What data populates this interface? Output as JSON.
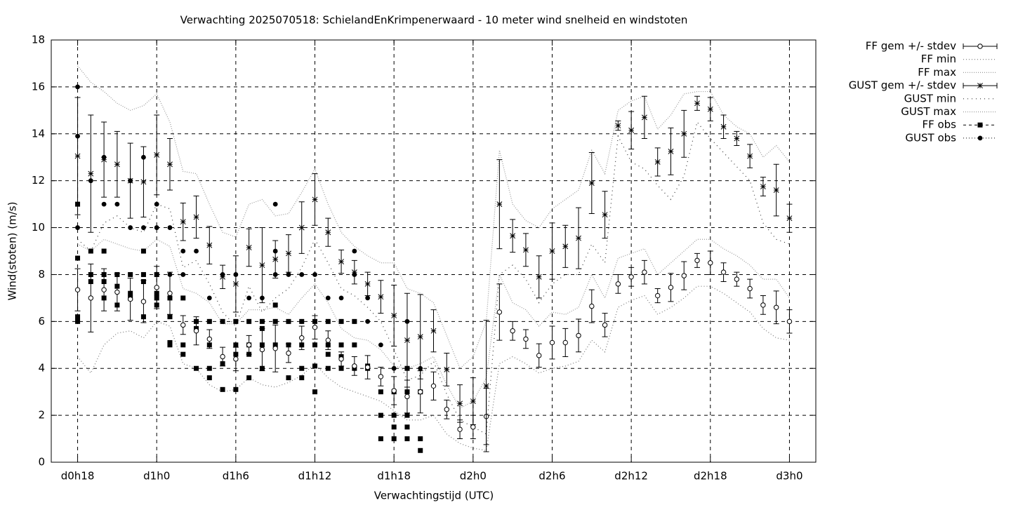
{
  "chart_data": {
    "type": "errorbar",
    "title": "Verwachting 2025070518: SchielandEnKrimpenerwaard - 10 meter wind snelheid en windstoten",
    "xlabel": "Verwachtingstijd (UTC)",
    "ylabel": "Wind(stoten) (m/s)",
    "xlim": [
      16,
      74
    ],
    "xticks": [
      {
        "value": 18,
        "label": "d0h18"
      },
      {
        "value": 24,
        "label": "d1h0"
      },
      {
        "value": 30,
        "label": "d1h6"
      },
      {
        "value": 36,
        "label": "d1h12"
      },
      {
        "value": 42,
        "label": "d1h18"
      },
      {
        "value": 48,
        "label": "d2h0"
      },
      {
        "value": 54,
        "label": "d2h6"
      },
      {
        "value": 60,
        "label": "d2h12"
      },
      {
        "value": 66,
        "label": "d2h18"
      },
      {
        "value": 72,
        "label": "d3h0"
      }
    ],
    "ylim": [
      0,
      18
    ],
    "yticks": [
      0,
      2,
      4,
      6,
      8,
      10,
      12,
      14,
      16,
      18
    ],
    "grid": true,
    "legend": "top-right",
    "x": [
      18,
      19,
      20,
      21,
      22,
      23,
      24,
      25,
      26,
      27,
      28,
      29,
      30,
      31,
      32,
      33,
      34,
      35,
      36,
      37,
      38,
      39,
      40,
      41,
      42,
      43,
      44,
      45,
      46,
      47,
      48,
      49,
      50,
      51,
      52,
      53,
      54,
      55,
      56,
      57,
      58,
      59,
      60,
      61,
      62,
      63,
      64,
      65,
      66,
      67,
      68,
      69,
      70,
      71,
      72
    ],
    "series": [
      {
        "name": "FF gem +/- stdev",
        "style": "errorbar",
        "marker": "circle",
        "color": "#000000",
        "values": [
          7.35,
          7.0,
          7.35,
          7.25,
          6.95,
          6.85,
          7.45,
          7.2,
          5.85,
          5.6,
          5.25,
          4.5,
          4.4,
          5.0,
          4.8,
          4.85,
          4.65,
          5.3,
          5.75,
          5.2,
          4.4,
          4.1,
          4.05,
          3.65,
          3.05,
          2.8,
          3.0,
          3.25,
          2.25,
          1.4,
          1.5,
          1.95,
          6.4,
          5.6,
          5.25,
          4.55,
          5.1,
          5.1,
          5.4,
          6.65,
          5.85,
          7.6,
          7.9,
          8.1,
          7.1,
          7.45,
          7.95,
          8.6,
          8.5,
          8.1,
          7.8,
          7.4,
          6.7,
          6.6,
          6.0
        ],
        "errors": [
          0.9,
          1.45,
          0.9,
          0.8,
          0.9,
          0.9,
          0.9,
          0.9,
          0.4,
          0.6,
          0.4,
          0.4,
          0.5,
          0.4,
          0.9,
          1.0,
          0.4,
          0.5,
          0.5,
          0.4,
          0.3,
          0.4,
          0.5,
          0.4,
          0.6,
          0.7,
          0.9,
          0.6,
          0.4,
          0.4,
          0.5,
          1.2,
          1.2,
          0.4,
          0.4,
          0.5,
          0.7,
          0.6,
          0.7,
          0.7,
          0.5,
          0.4,
          0.4,
          0.5,
          0.3,
          0.6,
          0.6,
          0.3,
          0.5,
          0.4,
          0.3,
          0.4,
          0.4,
          0.7,
          0.5
        ]
      },
      {
        "name": "FF min",
        "style": "line",
        "dash": "1 3",
        "color": "#777777",
        "values": [
          4.5,
          3.8,
          5.0,
          5.5,
          5.6,
          5.3,
          6.0,
          5.8,
          4.2,
          4.0,
          3.3,
          3.0,
          3.1,
          3.6,
          3.3,
          3.2,
          3.4,
          3.7,
          4.2,
          3.6,
          3.2,
          3.0,
          2.8,
          2.6,
          2.2,
          1.8,
          1.8,
          2.0,
          1.2,
          0.8,
          0.6,
          0.5,
          4.2,
          4.5,
          4.2,
          3.8,
          4.0,
          4.1,
          4.3,
          5.2,
          4.7,
          6.6,
          6.9,
          7.1,
          6.3,
          6.6,
          7.0,
          7.5,
          7.5,
          7.2,
          6.8,
          6.4,
          5.7,
          5.3,
          5.2
        ]
      },
      {
        "name": "FF max",
        "style": "line",
        "dash": "1 2",
        "color": "#999999",
        "values": [
          9.3,
          9.0,
          9.5,
          9.3,
          9.1,
          9.0,
          9.5,
          9.2,
          7.4,
          7.2,
          6.8,
          5.9,
          5.9,
          6.5,
          6.5,
          6.6,
          6.3,
          7.0,
          7.6,
          6.8,
          5.7,
          5.3,
          5.2,
          4.8,
          4.1,
          4.0,
          4.2,
          4.5,
          3.3,
          2.3,
          2.6,
          3.6,
          8.0,
          6.8,
          6.5,
          5.8,
          6.4,
          6.3,
          6.6,
          8.0,
          7.0,
          8.7,
          8.9,
          9.1,
          8.0,
          8.5,
          9.0,
          9.5,
          9.5,
          9.1,
          8.8,
          8.4,
          7.8,
          7.8,
          7.0
        ]
      },
      {
        "name": "GUST gem +/- stdev",
        "style": "errorbar",
        "marker": "star",
        "color": "#000000",
        "values": [
          13.05,
          12.3,
          12.9,
          12.7,
          12.0,
          11.95,
          13.1,
          12.7,
          10.25,
          10.45,
          9.25,
          7.9,
          7.6,
          9.15,
          8.4,
          8.65,
          8.9,
          10.0,
          11.2,
          9.8,
          8.55,
          8.1,
          7.6,
          7.05,
          6.25,
          5.2,
          5.35,
          5.6,
          3.95,
          2.5,
          2.6,
          3.25,
          11.0,
          9.65,
          9.05,
          7.9,
          9.0,
          9.2,
          9.55,
          11.9,
          10.55,
          14.35,
          14.15,
          14.7,
          12.8,
          13.25,
          14.0,
          15.3,
          15.05,
          14.3,
          13.8,
          13.05,
          11.75,
          11.6,
          10.4
        ],
        "errors": [
          2.5,
          2.5,
          1.6,
          1.4,
          1.6,
          1.5,
          1.7,
          1.1,
          0.8,
          0.9,
          0.8,
          0.5,
          1.2,
          0.8,
          1.6,
          0.8,
          0.8,
          1.1,
          1.1,
          0.6,
          0.5,
          0.5,
          0.5,
          0.7,
          1.3,
          2.0,
          1.8,
          0.9,
          0.7,
          0.8,
          1.0,
          2.8,
          1.9,
          0.7,
          0.7,
          0.9,
          1.2,
          0.9,
          1.3,
          1.3,
          1.0,
          0.2,
          0.8,
          0.9,
          0.6,
          1.0,
          1.0,
          0.3,
          0.5,
          0.5,
          0.3,
          0.5,
          0.4,
          1.1,
          0.6
        ]
      },
      {
        "name": "GUST min",
        "style": "line",
        "dash": "1 5",
        "color": "#333333",
        "values": [
          9.5,
          9.0,
          10.2,
          10.5,
          10.0,
          9.8,
          11.0,
          10.8,
          8.3,
          8.6,
          7.6,
          6.4,
          5.8,
          7.5,
          6.4,
          7.0,
          7.4,
          8.3,
          9.5,
          8.5,
          7.4,
          7.1,
          6.6,
          6.0,
          4.8,
          3.5,
          3.7,
          4.3,
          2.9,
          1.8,
          1.5,
          1.2,
          8.0,
          8.4,
          7.8,
          6.8,
          7.6,
          8.0,
          8.0,
          9.3,
          8.5,
          13.9,
          12.8,
          12.5,
          11.8,
          11.2,
          12.2,
          14.5,
          13.8,
          13.2,
          12.6,
          12.0,
          10.2,
          9.5,
          9.3
        ]
      },
      {
        "name": "GUST max",
        "style": "line",
        "dash": "1 2",
        "color": "#999999",
        "values": [
          16.9,
          16.2,
          15.8,
          15.3,
          15.0,
          15.2,
          15.7,
          14.5,
          12.4,
          12.3,
          11.0,
          9.8,
          9.6,
          11.0,
          11.2,
          10.5,
          10.6,
          11.5,
          12.5,
          11.0,
          9.8,
          9.2,
          8.8,
          8.5,
          8.5,
          7.4,
          7.2,
          6.8,
          5.4,
          4.0,
          4.5,
          6.0,
          13.3,
          11.0,
          10.3,
          10.0,
          10.8,
          11.2,
          11.6,
          13.3,
          12.3,
          15.0,
          15.4,
          15.6,
          14.2,
          14.8,
          15.7,
          15.8,
          15.8,
          14.8,
          14.3,
          14.0,
          13.0,
          13.5,
          12.8
        ]
      },
      {
        "name": "FF obs",
        "style": "points",
        "marker": "square",
        "dash": "4 4",
        "color": "#000000",
        "x": [
          18,
          18,
          18,
          18,
          19,
          19,
          19,
          20,
          20,
          20,
          20,
          21,
          21,
          21,
          22,
          22,
          22,
          23,
          23,
          23,
          23,
          24,
          24,
          24,
          24,
          25,
          25,
          25,
          25,
          26,
          26,
          26,
          27,
          27,
          27,
          28,
          28,
          28,
          28,
          29,
          29,
          29,
          30,
          30,
          30,
          30,
          31,
          31,
          31,
          31,
          32,
          32,
          32,
          32,
          33,
          33,
          33,
          34,
          34,
          34,
          35,
          35,
          35,
          35,
          36,
          36,
          36,
          36,
          37,
          37,
          37,
          37,
          38,
          38,
          38,
          38,
          39,
          39,
          39,
          40,
          40,
          41,
          41,
          41,
          42,
          42,
          42,
          42,
          43,
          43,
          43,
          43,
          43,
          44,
          44,
          44
        ],
        "values": [
          8.7,
          11,
          6.2,
          6.0,
          9,
          8,
          7.7,
          9,
          7.7,
          7,
          8,
          8,
          7.5,
          6.7,
          8,
          7.2,
          7,
          9,
          8,
          7.7,
          6.2,
          8,
          7.2,
          7,
          6.7,
          7,
          6.2,
          5,
          5.1,
          7,
          5,
          4.6,
          6,
          5.7,
          4,
          6,
          5,
          4,
          3.6,
          6,
          4.2,
          3.1,
          6,
          5,
          4.6,
          3.1,
          6,
          5,
          4.6,
          3.6,
          6,
          5.7,
          5,
          4,
          6.7,
          6,
          5,
          6,
          5,
          3.6,
          6,
          5,
          4,
          3.6,
          6,
          5,
          4.1,
          3,
          6,
          5,
          4.6,
          4,
          6,
          5,
          4.5,
          4,
          6,
          5,
          4,
          4,
          4.1,
          3,
          2,
          1,
          3,
          2,
          1.5,
          1,
          4,
          3,
          2,
          1.5,
          1,
          3,
          1,
          0.5
        ]
      },
      {
        "name": "GUST obs",
        "style": "points",
        "marker": "dot",
        "dash": "1 3",
        "color": "#000000",
        "x": [
          18,
          18,
          18,
          19,
          20,
          20,
          21,
          22,
          22,
          23,
          23,
          24,
          24,
          25,
          25,
          26,
          26,
          27,
          28,
          28,
          29,
          29,
          30,
          30,
          31,
          31,
          32,
          32,
          33,
          33,
          33,
          33,
          34,
          34,
          35,
          35,
          36,
          36,
          37,
          37,
          38,
          38,
          39,
          39,
          39,
          40,
          40,
          41,
          42,
          42,
          43,
          43,
          44,
          44
        ],
        "values": [
          16,
          13.9,
          10,
          12,
          13,
          11,
          11,
          12,
          10,
          13,
          10,
          11,
          10,
          10,
          8,
          9,
          8,
          9,
          7,
          6,
          8,
          6,
          8,
          6,
          7,
          6,
          7,
          6,
          11,
          9,
          8,
          6,
          8,
          6,
          8,
          6,
          8,
          6,
          7,
          6,
          7,
          6,
          9,
          8,
          6,
          7,
          6,
          5,
          4,
          3,
          6,
          4,
          4,
          3
        ]
      }
    ]
  }
}
